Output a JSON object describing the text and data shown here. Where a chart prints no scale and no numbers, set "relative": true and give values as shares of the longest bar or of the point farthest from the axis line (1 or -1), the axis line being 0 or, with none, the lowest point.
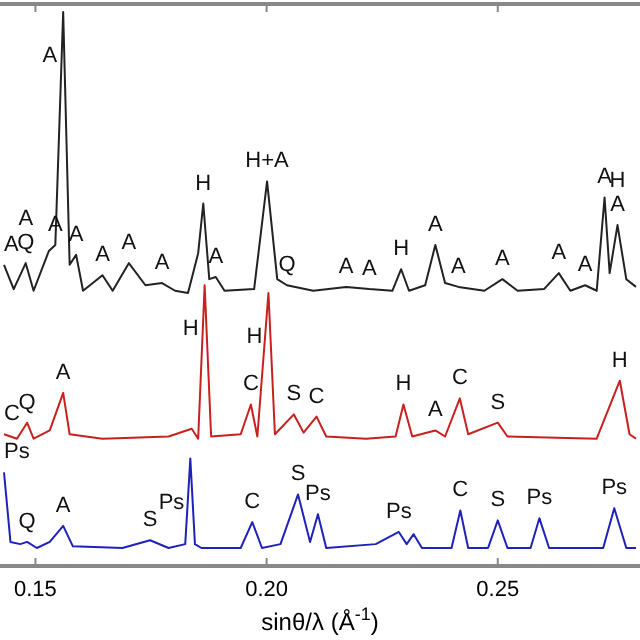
{
  "chart_data": {
    "type": "line",
    "relative": true,
    "xlabel": "sinθ/λ (Å$^{-1}$)",
    "xlim": [
      0.1432,
      0.2799
    ],
    "xticks": [
      0.15,
      {
        "value": 0.2,
        "label": "0.20"
      },
      0.25
    ],
    "grid": false,
    "marker": "none",
    "line_style": "solid",
    "series": [
      {
        "color": "#222222",
        "x": [
          0.1432,
          0.1453,
          0.1479,
          0.1496,
          0.1529,
          0.1543,
          0.156,
          0.1574,
          0.1588,
          0.1603,
          0.1645,
          0.1667,
          0.1702,
          0.1738,
          0.1774,
          0.1802,
          0.183,
          0.1852,
          0.1863,
          0.1876,
          0.189,
          0.1909,
          0.1973,
          0.2001,
          0.2023,
          0.2044,
          0.2101,
          0.2172,
          0.2222,
          0.2272,
          0.2291,
          0.2308,
          0.2343,
          0.2365,
          0.2386,
          0.2415,
          0.2471,
          0.251,
          0.2543,
          0.26,
          0.2632,
          0.2657,
          0.2689,
          0.2714,
          0.2731,
          0.2742,
          0.2759,
          0.2778,
          0.2799
        ],
        "values": [
          0.542,
          0.498,
          0.545,
          0.495,
          0.567,
          0.578,
          1,
          0.542,
          0.56,
          0.495,
          0.523,
          0.495,
          0.545,
          0.505,
          0.509,
          0.495,
          0.491,
          0.563,
          0.653,
          0.516,
          0.52,
          0.495,
          0.498,
          0.693,
          0.516,
          0.505,
          0.495,
          0.502,
          0.498,
          0.495,
          0.534,
          0.495,
          0.505,
          0.578,
          0.509,
          0.502,
          0.495,
          0.516,
          0.495,
          0.498,
          0.527,
          0.495,
          0.505,
          0.495,
          0.664,
          0.527,
          0.614,
          0.516,
          0.502
        ]
      },
      {
        "color": "#c8201e",
        "x": [
          0.1432,
          0.146,
          0.1482,
          0.1496,
          0.1531,
          0.156,
          0.1574,
          0.1645,
          0.1788,
          0.1838,
          0.1852,
          0.1866,
          0.188,
          0.1944,
          0.1966,
          0.198,
          0.2004,
          0.2018,
          0.2059,
          0.208,
          0.2108,
          0.2129,
          0.2215,
          0.2279,
          0.2296,
          0.2315,
          0.2365,
          0.2386,
          0.2418,
          0.2436,
          0.25,
          0.2521,
          0.2714,
          0.2764,
          0.2785,
          0.2799
        ],
        "values": [
          0.235,
          0.227,
          0.256,
          0.227,
          0.242,
          0.31,
          0.235,
          0.227,
          0.231,
          0.245,
          0.227,
          0.505,
          0.231,
          0.235,
          0.289,
          0.231,
          0.491,
          0.235,
          0.271,
          0.238,
          0.267,
          0.231,
          0.227,
          0.231,
          0.289,
          0.231,
          0.242,
          0.231,
          0.3,
          0.235,
          0.256,
          0.231,
          0.227,
          0.332,
          0.235,
          0.227
        ]
      },
      {
        "color": "#1f22b8",
        "x": [
          0.1432,
          0.1446,
          0.1467,
          0.1482,
          0.1503,
          0.1531,
          0.156,
          0.1581,
          0.1688,
          0.1748,
          0.1788,
          0.1824,
          0.1835,
          0.1845,
          0.1859,
          0.1944,
          0.1969,
          0.199,
          0.203,
          0.2068,
          0.2094,
          0.2111,
          0.2129,
          0.2236,
          0.2286,
          0.2303,
          0.2318,
          0.2336,
          0.24,
          0.2419,
          0.2436,
          0.2479,
          0.25,
          0.2521,
          0.2571,
          0.259,
          0.2611,
          0.2728,
          0.2752,
          0.2778,
          0.2799
        ],
        "values": [
          0.166,
          0.04,
          0.036,
          0.04,
          0.029,
          0.04,
          0.069,
          0.032,
          0.029,
          0.043,
          0.029,
          0.036,
          0.191,
          0.036,
          0.029,
          0.029,
          0.076,
          0.029,
          0.036,
          0.126,
          0.04,
          0.09,
          0.029,
          0.036,
          0.058,
          0.036,
          0.054,
          0.029,
          0.029,
          0.097,
          0.029,
          0.029,
          0.079,
          0.029,
          0.029,
          0.083,
          0.029,
          0.029,
          0.101,
          0.029,
          0.029
        ]
      }
    ],
    "annotations": [
      {
        "text": "A",
        "x": 0.1432,
        "y": 0.542
      },
      {
        "text": "A",
        "x": 0.156,
        "y": 1
      },
      {
        "text": "Q",
        "x": 0.1479,
        "y": 0.545
      },
      {
        "text": "A",
        "x": 0.1479,
        "y": 0.545
      },
      {
        "text": "A",
        "x": 0.1543,
        "y": 0.578
      },
      {
        "text": "A",
        "x": 0.1588,
        "y": 0.56
      },
      {
        "text": "A",
        "x": 0.1645,
        "y": 0.523
      },
      {
        "text": "A",
        "x": 0.1702,
        "y": 0.545
      },
      {
        "text": "A",
        "x": 0.1774,
        "y": 0.509
      },
      {
        "text": "H",
        "x": 0.1863,
        "y": 0.653
      },
      {
        "text": "A",
        "x": 0.189,
        "y": 0.52
      },
      {
        "text": "H+A",
        "x": 0.2001,
        "y": 0.693
      },
      {
        "text": "Q",
        "x": 0.2044,
        "y": 0.505
      },
      {
        "text": "A",
        "x": 0.2172,
        "y": 0.502
      },
      {
        "text": "A",
        "x": 0.2222,
        "y": 0.498
      },
      {
        "text": "H",
        "x": 0.2291,
        "y": 0.534
      },
      {
        "text": "A",
        "x": 0.2365,
        "y": 0.578
      },
      {
        "text": "A",
        "x": 0.2415,
        "y": 0.502
      },
      {
        "text": "A",
        "x": 0.251,
        "y": 0.516
      },
      {
        "text": "A",
        "x": 0.2632,
        "y": 0.527
      },
      {
        "text": "A",
        "x": 0.2689,
        "y": 0.505
      },
      {
        "text": "A",
        "x": 0.2731,
        "y": 0.664
      },
      {
        "text": "A",
        "x": 0.2759,
        "y": 0.614
      },
      {
        "text": "H",
        "x": 0.2759,
        "y": 0.614
      },
      {
        "text": "C",
        "x": 0.1432,
        "y": 0.235
      },
      {
        "text": "Q",
        "x": 0.1482,
        "y": 0.256
      },
      {
        "text": "A",
        "x": 0.156,
        "y": 0.31
      },
      {
        "text": "H",
        "x": 0.1866,
        "y": 0.505
      },
      {
        "text": "H",
        "x": 0.2004,
        "y": 0.491
      },
      {
        "text": "C",
        "x": 0.1966,
        "y": 0.289
      },
      {
        "text": "S",
        "x": 0.2059,
        "y": 0.271
      },
      {
        "text": "C",
        "x": 0.2108,
        "y": 0.267
      },
      {
        "text": "H",
        "x": 0.2296,
        "y": 0.289
      },
      {
        "text": "A",
        "x": 0.2365,
        "y": 0.242
      },
      {
        "text": "C",
        "x": 0.2418,
        "y": 0.3
      },
      {
        "text": "S",
        "x": 0.25,
        "y": 0.256
      },
      {
        "text": "H",
        "x": 0.2764,
        "y": 0.332
      },
      {
        "text": "Ps",
        "x": 0.1432,
        "y": 0.166
      },
      {
        "text": "Q",
        "x": 0.1482,
        "y": 0.04
      },
      {
        "text": "A",
        "x": 0.156,
        "y": 0.069
      },
      {
        "text": "S",
        "x": 0.1748,
        "y": 0.043
      },
      {
        "text": "Ps",
        "x": 0.1835,
        "y": 0.191
      },
      {
        "text": "C",
        "x": 0.1969,
        "y": 0.076
      },
      {
        "text": "S",
        "x": 0.2068,
        "y": 0.126
      },
      {
        "text": "Ps",
        "x": 0.2111,
        "y": 0.09
      },
      {
        "text": "Ps",
        "x": 0.2286,
        "y": 0.058
      },
      {
        "text": "C",
        "x": 0.2419,
        "y": 0.097
      },
      {
        "text": "S",
        "x": 0.25,
        "y": 0.079
      },
      {
        "text": "Ps",
        "x": 0.259,
        "y": 0.083
      },
      {
        "text": "Ps",
        "x": 0.2752,
        "y": 0.101
      }
    ]
  }
}
